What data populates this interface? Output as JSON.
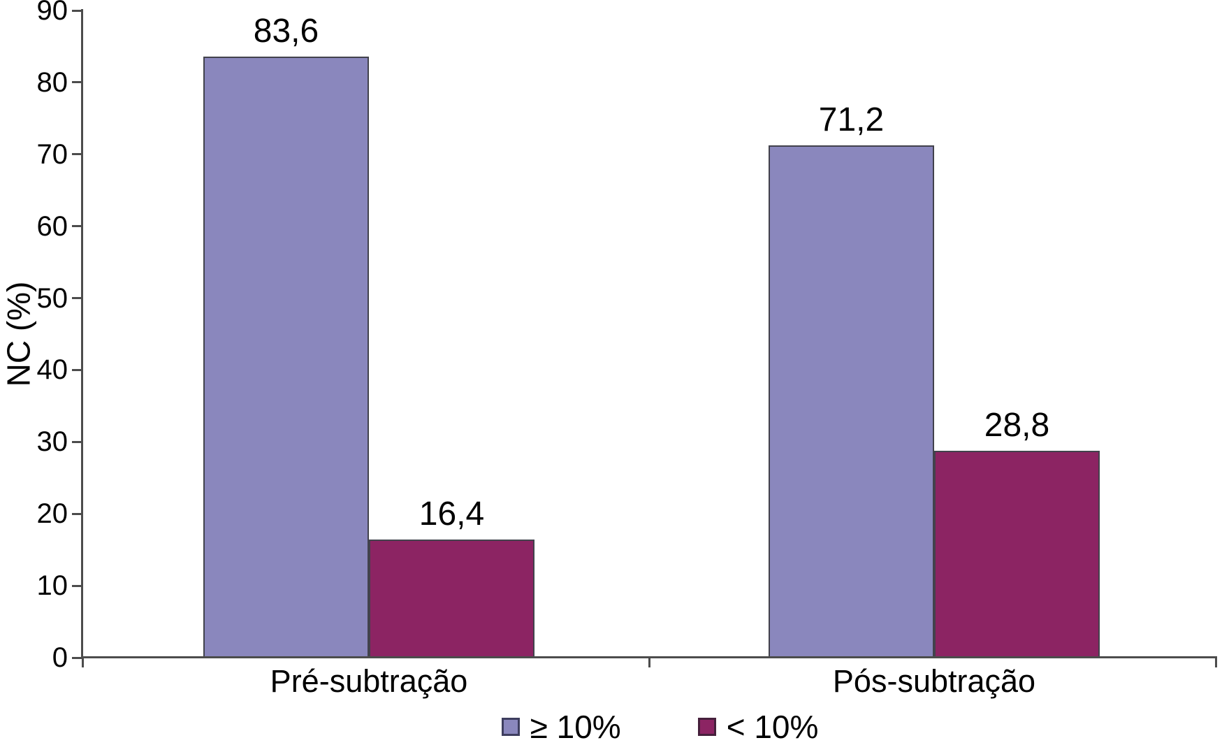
{
  "chart_data": {
    "type": "bar",
    "categories": [
      "Pré-subtração",
      "Pós-subtração"
    ],
    "series": [
      {
        "name": "≥ 10%",
        "color": "#8a87bd",
        "values": [
          83.6,
          71.2
        ],
        "display_values": [
          "83,6",
          "71,2"
        ]
      },
      {
        "name": "< 10%",
        "color": "#8c2463",
        "values": [
          16.4,
          28.8
        ],
        "display_values": [
          "16,4",
          "28,8"
        ]
      }
    ],
    "ylabel": "NC (%)",
    "xlabel": "",
    "ylim": [
      0,
      90
    ],
    "yticks": [
      0,
      10,
      20,
      30,
      40,
      50,
      60,
      70,
      80,
      90
    ],
    "grid": false,
    "legend_position": "bottom",
    "bar_value_labels_shown": true
  }
}
